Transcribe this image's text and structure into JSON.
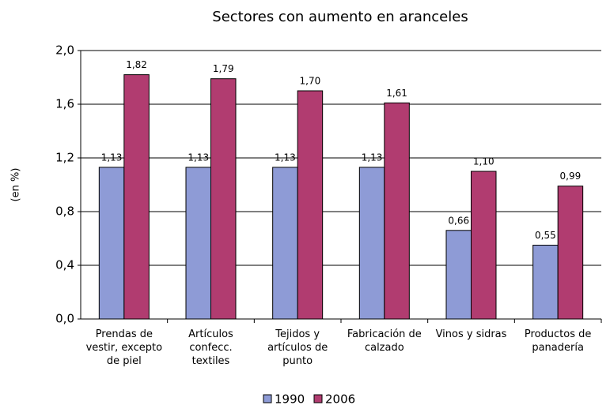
{
  "chart_data": {
    "type": "bar",
    "title": "Sectores con aumento en aranceles",
    "ylabel": "(en %)",
    "categories": [
      "Prendas de vestir, excepto de piel",
      "Artículos confecc. textiles",
      "Tejidos y artículos de punto",
      "Fabricación de calzado",
      "Vinos y sidras",
      "Productos de panadería"
    ],
    "series": [
      {
        "name": "1990",
        "color": "#8e9bd6",
        "values": [
          1.13,
          1.13,
          1.13,
          1.13,
          0.66,
          0.55
        ],
        "value_labels": [
          "1,13",
          "1,13",
          "1,13",
          "1,13",
          "0,66",
          "0,55"
        ]
      },
      {
        "name": "2006",
        "color": "#b13c70",
        "values": [
          1.82,
          1.79,
          1.7,
          1.61,
          1.1,
          0.99
        ],
        "value_labels": [
          "1,82",
          "1,79",
          "1,70",
          "1,61",
          "1,10",
          "0,99"
        ]
      }
    ],
    "ylim": [
      0,
      2
    ],
    "yticks": [
      {
        "value": 0,
        "label": "0,0"
      },
      {
        "value": 0.4,
        "label": "0,4"
      },
      {
        "value": 0.8,
        "label": "0,8"
      },
      {
        "value": 1.2,
        "label": "1,2"
      },
      {
        "value": 1.6,
        "label": "1,6"
      },
      {
        "value": 2,
        "label": "2,0"
      }
    ],
    "grid": true,
    "legend": "bottom"
  }
}
